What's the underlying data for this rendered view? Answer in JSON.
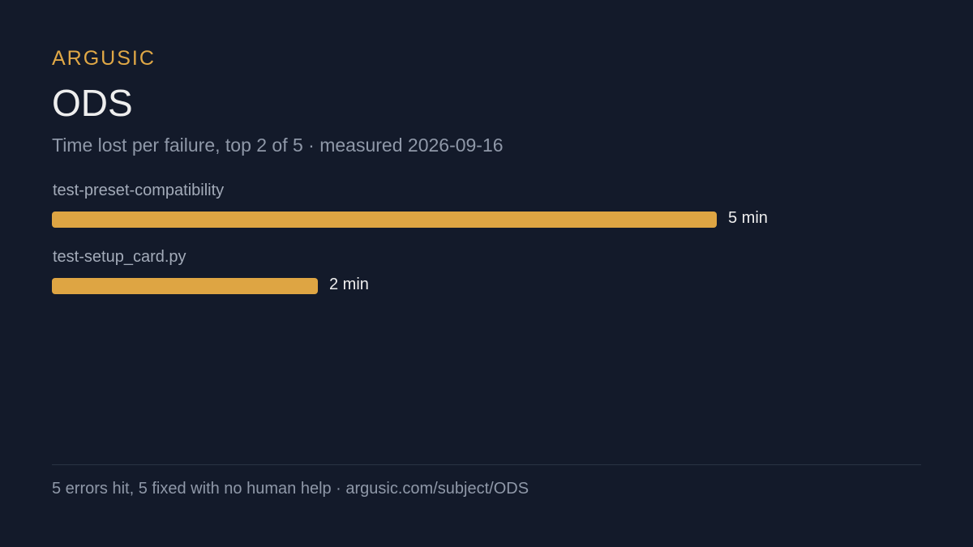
{
  "header": {
    "brand": "ARGUSIC",
    "title": "ODS",
    "subtitle": "Time lost per failure, top 2 of 5 · measured 2026-09-16"
  },
  "chart_data": {
    "type": "bar",
    "orientation": "horizontal",
    "categories": [
      "test-preset-compatibility",
      "test-setup_card.py"
    ],
    "values": [
      5,
      2
    ],
    "value_labels": [
      "5 min",
      "2 min"
    ],
    "unit": "min",
    "xlim": [
      0,
      5
    ],
    "grid": false,
    "bar_color": "#dea543"
  },
  "footer": {
    "text": "5 errors hit, 5 fixed with no human help · argusic.com/subject/ODS"
  },
  "colors": {
    "background": "#131a2a",
    "accent": "#e0a846",
    "bar": "#dea543"
  }
}
